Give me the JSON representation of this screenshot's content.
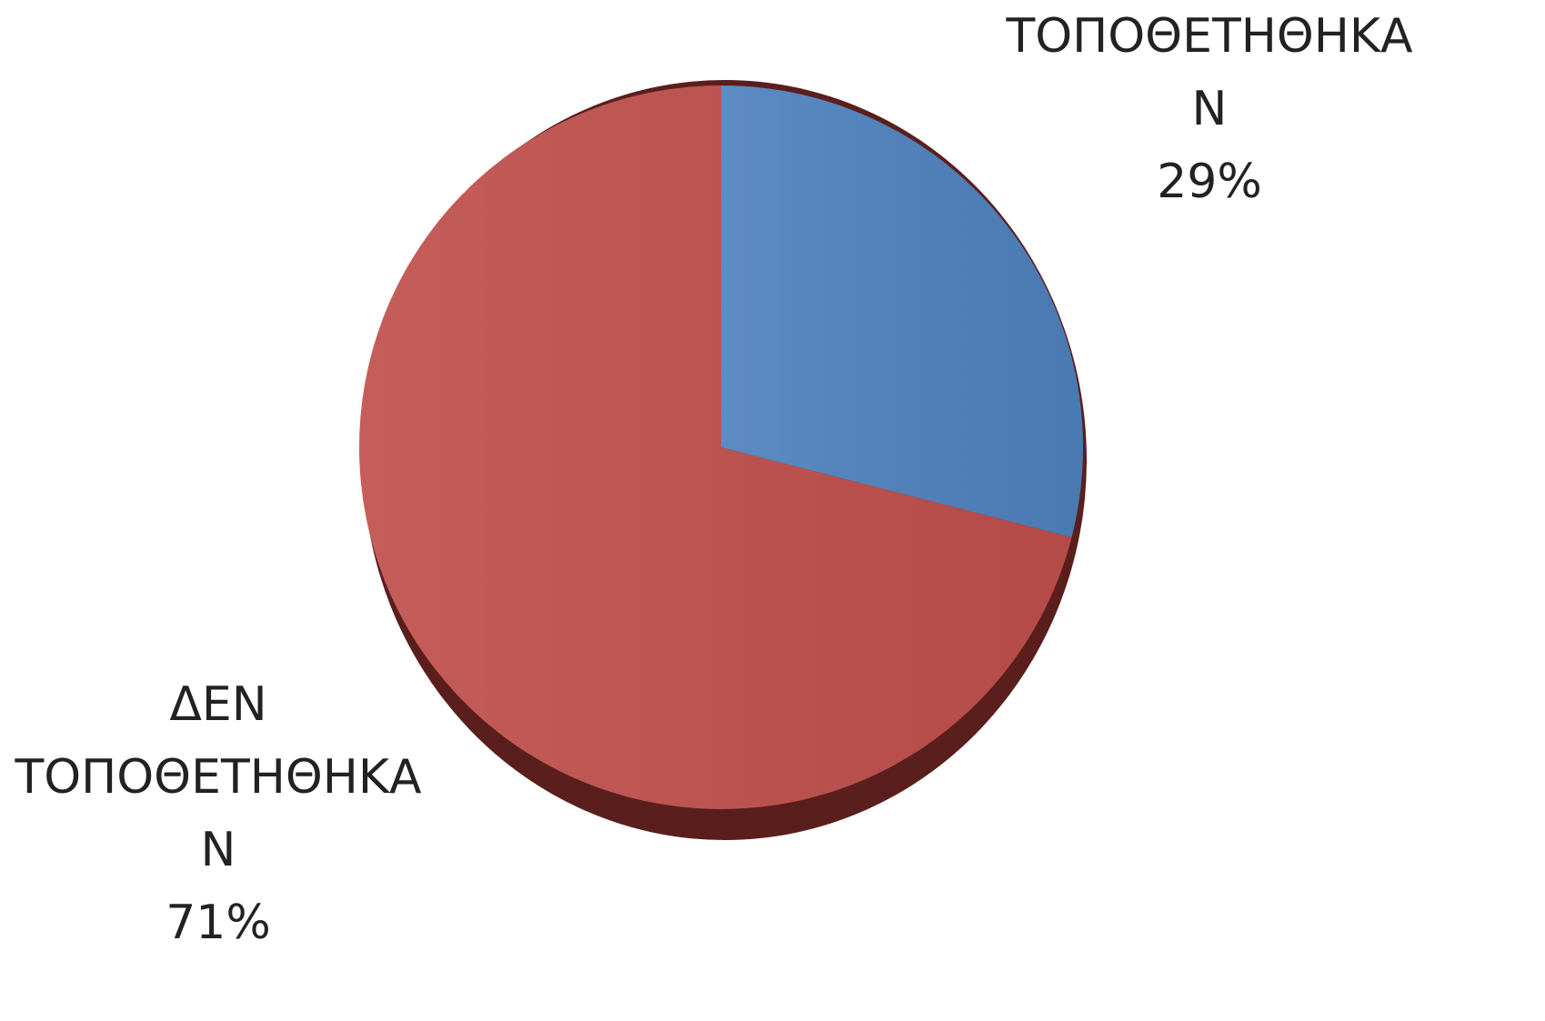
{
  "chart_data": {
    "type": "pie",
    "categories": [
      "ΤΟΠΟΘΕΤΗΘΗΚΑΝ",
      "ΔΕΝ ΤΟΠΟΘΕΤΗΘΗΚΑΝ"
    ],
    "values": [
      29,
      71
    ],
    "value_labels": [
      "29%",
      "71%"
    ],
    "colors": [
      "#4f81bd",
      "#c0504d"
    ]
  }
}
